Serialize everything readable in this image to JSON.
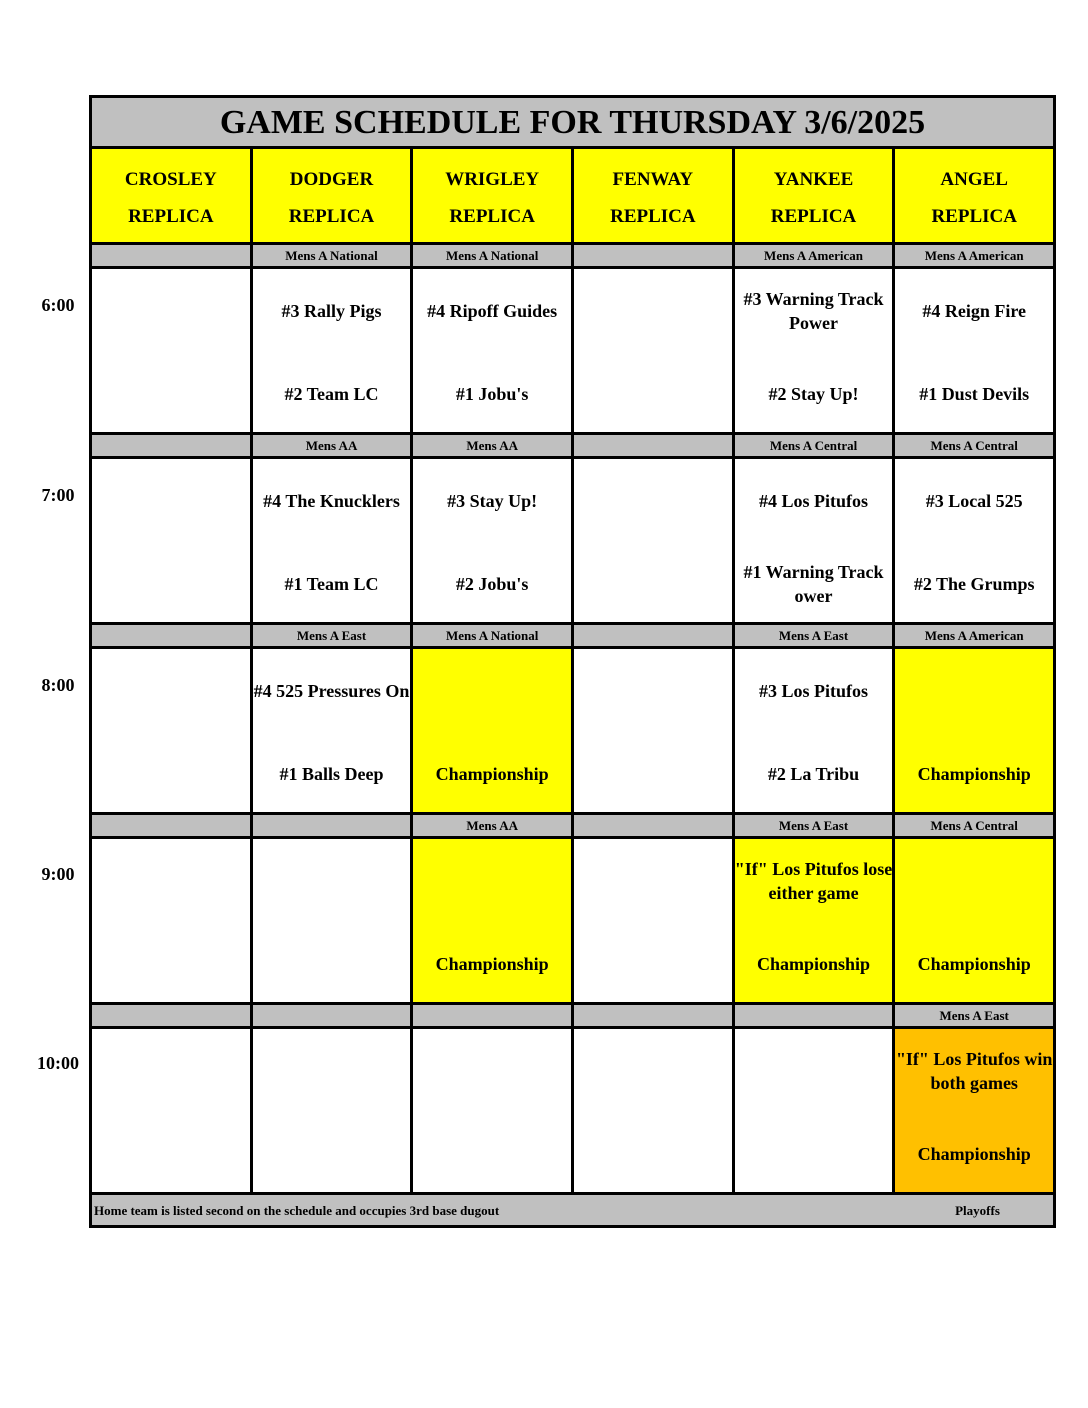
{
  "title": "GAME SCHEDULE FOR THURSDAY 3/6/2025",
  "colors": {
    "header": "#ffff00",
    "championship": "#ffff00",
    "final_if": "#ffc000",
    "band": "#c0c0c0"
  },
  "fields": [
    {
      "line1": "CROSLEY",
      "line2": "REPLICA"
    },
    {
      "line1": "DODGER",
      "line2": "REPLICA"
    },
    {
      "line1": "WRIGLEY",
      "line2": "REPLICA"
    },
    {
      "line1": "FENWAY",
      "line2": "REPLICA"
    },
    {
      "line1": "YANKEE",
      "line2": "REPLICA"
    },
    {
      "line1": "ANGEL",
      "line2": "REPLICA"
    }
  ],
  "slots": [
    {
      "time": "6:00",
      "divisions": [
        "",
        "Mens A National",
        "Mens A National",
        "",
        "Mens A American",
        "Mens A American"
      ],
      "games": [
        {
          "top": "",
          "bottom": "",
          "bg": "#ffffff"
        },
        {
          "top": "#3 Rally Pigs",
          "bottom": "#2 Team LC",
          "bg": "#ffffff"
        },
        {
          "top": "#4 Ripoff Guides",
          "bottom": "#1 Jobu's",
          "bg": "#ffffff"
        },
        {
          "top": "",
          "bottom": "",
          "bg": "#ffffff"
        },
        {
          "top": "#3 Warning Track Power",
          "bottom": "#2 Stay Up!",
          "bg": "#ffffff"
        },
        {
          "top": "#4 Reign Fire",
          "bottom": "#1 Dust Devils",
          "bg": "#ffffff"
        }
      ]
    },
    {
      "time": "7:00",
      "divisions": [
        "",
        "Mens AA",
        "Mens AA",
        "",
        "Mens A Central",
        "Mens A Central"
      ],
      "games": [
        {
          "top": "",
          "bottom": "",
          "bg": "#ffffff"
        },
        {
          "top": "#4 The Knucklers",
          "bottom": "#1 Team LC",
          "bg": "#ffffff"
        },
        {
          "top": "#3 Stay Up!",
          "bottom": "#2 Jobu's",
          "bg": "#ffffff"
        },
        {
          "top": "",
          "bottom": "",
          "bg": "#ffffff"
        },
        {
          "top": "#4 Los Pitufos",
          "bottom": "#1 Warning Track ower",
          "bg": "#ffffff"
        },
        {
          "top": "#3 Local 525",
          "bottom": "#2 The Grumps",
          "bg": "#ffffff"
        }
      ]
    },
    {
      "time": "8:00",
      "divisions": [
        "",
        "Mens A East",
        "Mens A National",
        "",
        "Mens A East",
        "Mens A American"
      ],
      "games": [
        {
          "top": "",
          "bottom": "",
          "bg": "#ffffff"
        },
        {
          "top": "#4 525 Pressures On",
          "bottom": "#1 Balls Deep",
          "bg": "#ffffff"
        },
        {
          "top": "",
          "bottom": "Championship",
          "bg": "#ffff00"
        },
        {
          "top": "",
          "bottom": "",
          "bg": "#ffffff"
        },
        {
          "top": "#3 Los Pitufos",
          "bottom": "#2 La Tribu",
          "bg": "#ffffff"
        },
        {
          "top": "",
          "bottom": "Championship",
          "bg": "#ffff00"
        }
      ]
    },
    {
      "time": "9:00",
      "divisions": [
        "",
        "",
        "Mens AA",
        "",
        "Mens A East",
        "Mens A Central"
      ],
      "games": [
        {
          "top": "",
          "bottom": "",
          "bg": "#ffffff"
        },
        {
          "top": "",
          "bottom": "",
          "bg": "#ffffff"
        },
        {
          "top": "",
          "bottom": "Championship",
          "bg": "#ffff00"
        },
        {
          "top": "",
          "bottom": "",
          "bg": "#ffffff"
        },
        {
          "top": "\"If\" Los Pitufos lose either game",
          "bottom": "Championship",
          "bg": "#ffff00"
        },
        {
          "top": "",
          "bottom": "Championship",
          "bg": "#ffff00"
        }
      ]
    },
    {
      "time": "10:00",
      "divisions": [
        "",
        "",
        "",
        "",
        "",
        "Mens A East"
      ],
      "games": [
        {
          "top": "",
          "bottom": "",
          "bg": "#ffffff"
        },
        {
          "top": "",
          "bottom": "",
          "bg": "#ffffff"
        },
        {
          "top": "",
          "bottom": "",
          "bg": "#ffffff"
        },
        {
          "top": "",
          "bottom": "",
          "bg": "#ffffff"
        },
        {
          "top": "",
          "bottom": "",
          "bg": "#ffffff"
        },
        {
          "top": "\"If\" Los Pitufos win both games",
          "bottom": "Championship",
          "bg": "#ffc000"
        }
      ]
    }
  ],
  "footer": {
    "note": "Home team is listed second on the schedule and occupies 3rd base dugout",
    "right": "Playoffs"
  }
}
